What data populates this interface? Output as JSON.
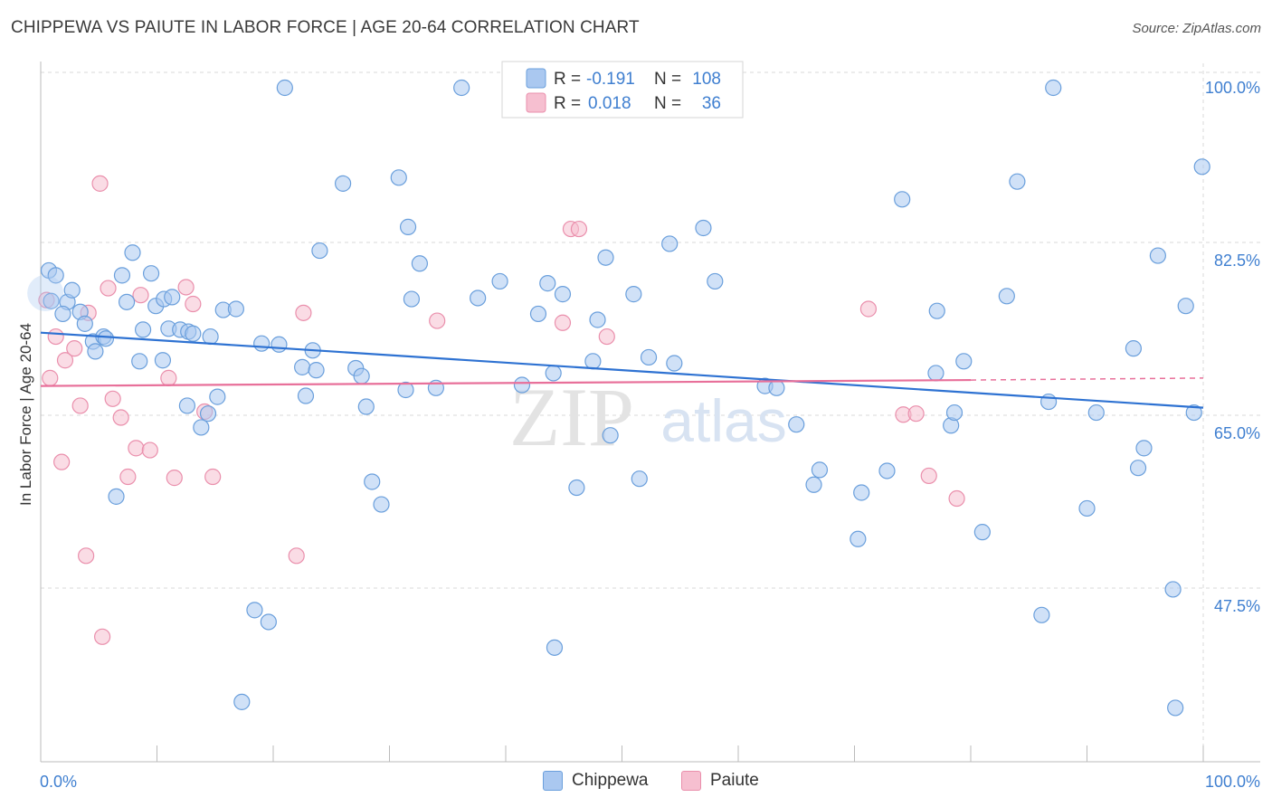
{
  "header": {
    "title": "CHIPPEWA VS PAIUTE IN LABOR FORCE | AGE 20-64 CORRELATION CHART",
    "source": "Source: ZipAtlas.com"
  },
  "watermark": {
    "zip": "ZIP",
    "atlas": "atlas"
  },
  "legend_top": {
    "rows": [
      {
        "r_label": "R =",
        "r_value": "-0.191",
        "n_label": "N =",
        "n_value": "108"
      },
      {
        "r_label": "R =",
        "r_value": "0.018",
        "n_label": "N =",
        "n_value": "36"
      }
    ]
  },
  "legend_bottom": {
    "items": [
      "Chippewa",
      "Paiute"
    ]
  },
  "colors": {
    "chippewa_fill": "#aac8f0",
    "chippewa_stroke": "#6a9fdc",
    "chippewa_line": "#2e72d2",
    "paiute_fill": "#f6bfd0",
    "paiute_stroke": "#ea8fac",
    "paiute_line": "#e8709a",
    "axis_text": "#3f7fd0",
    "grid": "#d9d9d9"
  },
  "chart_data": {
    "type": "scatter",
    "title": "CHIPPEWA VS PAIUTE IN LABOR FORCE | AGE 20-64 CORRELATION CHART",
    "xlabel": "",
    "ylabel": "In Labor Force | Age 20-64",
    "xlim": [
      0,
      100
    ],
    "ylim": [
      31.5,
      102
    ],
    "x_tick_labels": [
      "0.0%",
      "100.0%"
    ],
    "y_ticks": [
      100,
      82.5,
      65,
      47.5
    ],
    "y_tick_labels": [
      "100.0%",
      "82.5%",
      "65.0%",
      "47.5%"
    ],
    "grid": true,
    "legend_placement": "top-center",
    "series": [
      {
        "name": "Chippewa",
        "r": -0.191,
        "n": 108,
        "trend": {
          "x": [
            0,
            100
          ],
          "y": [
            75.2,
            67.6
          ]
        },
        "points": [
          [
            0.7,
            81.5
          ],
          [
            0.9,
            78.4
          ],
          [
            1.3,
            81
          ],
          [
            2.3,
            78.3
          ],
          [
            1.9,
            77.1
          ],
          [
            3.4,
            77.3
          ],
          [
            2.7,
            79.5
          ],
          [
            3.8,
            76.1
          ],
          [
            4.5,
            74.3
          ],
          [
            4.7,
            73.3
          ],
          [
            5.4,
            74.8
          ],
          [
            5.6,
            74.6
          ],
          [
            6.5,
            58.6
          ],
          [
            7.0,
            81
          ],
          [
            7.4,
            78.3
          ],
          [
            7.9,
            83.3
          ],
          [
            8.5,
            72.3
          ],
          [
            8.8,
            75.5
          ],
          [
            9.5,
            81.2
          ],
          [
            9.9,
            77.9
          ],
          [
            10.5,
            72.4
          ],
          [
            10.6,
            78.6
          ],
          [
            11.0,
            75.6
          ],
          [
            11.3,
            78.8
          ],
          [
            12.0,
            75.5
          ],
          [
            12.6,
            67.8
          ],
          [
            12.7,
            75.3
          ],
          [
            13.1,
            75.1
          ],
          [
            13.8,
            65.6
          ],
          [
            14.4,
            67.0
          ],
          [
            14.6,
            74.8
          ],
          [
            15.2,
            68.7
          ],
          [
            15.7,
            77.5
          ],
          [
            16.8,
            77.6
          ],
          [
            17.3,
            37.8
          ],
          [
            18.4,
            47.1
          ],
          [
            19.0,
            74.1
          ],
          [
            19.6,
            45.9
          ],
          [
            20.5,
            74.0
          ],
          [
            21.0,
            100
          ],
          [
            22.5,
            71.7
          ],
          [
            22.8,
            68.8
          ],
          [
            23.4,
            73.4
          ],
          [
            23.7,
            71.4
          ],
          [
            24.0,
            83.5
          ],
          [
            26.0,
            90.3
          ],
          [
            27.1,
            71.6
          ],
          [
            27.6,
            70.8
          ],
          [
            28.0,
            67.7
          ],
          [
            28.5,
            60.1
          ],
          [
            29.3,
            57.8
          ],
          [
            30.8,
            90.9
          ],
          [
            31.4,
            69.4
          ],
          [
            31.6,
            85.9
          ],
          [
            31.9,
            78.6
          ],
          [
            32.6,
            82.2
          ],
          [
            34.0,
            69.6
          ],
          [
            36.2,
            100
          ],
          [
            37.6,
            78.7
          ],
          [
            39.5,
            80.4
          ],
          [
            41.4,
            69.9
          ],
          [
            42.8,
            77.1
          ],
          [
            43.6,
            80.2
          ],
          [
            44.1,
            71.1
          ],
          [
            44.2,
            43.3
          ],
          [
            44.9,
            79.1
          ],
          [
            46.1,
            59.5
          ],
          [
            47.5,
            72.3
          ],
          [
            47.9,
            76.5
          ],
          [
            48.6,
            82.8
          ],
          [
            49.0,
            64.8
          ],
          [
            51.0,
            79.1
          ],
          [
            51.5,
            60.4
          ],
          [
            52.3,
            72.7
          ],
          [
            54.1,
            84.2
          ],
          [
            54.5,
            72.1
          ],
          [
            57.0,
            85.8
          ],
          [
            58.0,
            80.4
          ],
          [
            62.3,
            69.8
          ],
          [
            63.3,
            69.6
          ],
          [
            65.0,
            65.9
          ],
          [
            66.5,
            59.8
          ],
          [
            67.0,
            61.3
          ],
          [
            70.3,
            54.3
          ],
          [
            70.6,
            59.0
          ],
          [
            72.8,
            61.2
          ],
          [
            74.1,
            88.7
          ],
          [
            77.1,
            77.4
          ],
          [
            77.0,
            71.1
          ],
          [
            78.3,
            65.8
          ],
          [
            78.6,
            67.1
          ],
          [
            79.4,
            72.3
          ],
          [
            81.0,
            55.0
          ],
          [
            83.1,
            78.9
          ],
          [
            84.0,
            90.5
          ],
          [
            86.1,
            46.6
          ],
          [
            86.7,
            68.2
          ],
          [
            87.1,
            100
          ],
          [
            90.0,
            57.4
          ],
          [
            90.8,
            67.1
          ],
          [
            94.0,
            73.6
          ],
          [
            94.4,
            61.5
          ],
          [
            94.9,
            63.5
          ],
          [
            96.1,
            83.0
          ],
          [
            97.4,
            49.2
          ],
          [
            97.6,
            37.2
          ],
          [
            98.5,
            77.9
          ],
          [
            99.2,
            67.1
          ],
          [
            99.9,
            92.0
          ]
        ]
      },
      {
        "name": "Paiute",
        "r": 0.018,
        "n": 36,
        "trend": {
          "x": [
            0,
            80
          ],
          "y": [
            69.8,
            70.4
          ]
        },
        "dashed_trend": {
          "x": [
            80,
            100
          ],
          "y": [
            70.4,
            70.6
          ]
        },
        "points": [
          [
            0.5,
            78.5
          ],
          [
            0.8,
            70.6
          ],
          [
            1.3,
            74.8
          ],
          [
            1.8,
            62.1
          ],
          [
            2.1,
            72.4
          ],
          [
            2.9,
            73.6
          ],
          [
            3.4,
            67.8
          ],
          [
            3.9,
            52.6
          ],
          [
            4.1,
            77.2
          ],
          [
            5.1,
            90.3
          ],
          [
            5.3,
            44.4
          ],
          [
            5.8,
            79.7
          ],
          [
            6.2,
            68.5
          ],
          [
            6.9,
            66.6
          ],
          [
            7.5,
            60.6
          ],
          [
            8.2,
            63.5
          ],
          [
            8.6,
            79.0
          ],
          [
            9.4,
            63.3
          ],
          [
            11.0,
            70.6
          ],
          [
            11.5,
            60.5
          ],
          [
            12.5,
            79.8
          ],
          [
            13.1,
            78.1
          ],
          [
            14.1,
            67.2
          ],
          [
            14.8,
            60.6
          ],
          [
            22.0,
            52.6
          ],
          [
            22.6,
            77.2
          ],
          [
            34.1,
            76.4
          ],
          [
            44.9,
            76.2
          ],
          [
            45.6,
            85.7
          ],
          [
            46.3,
            85.7
          ],
          [
            48.7,
            74.8
          ],
          [
            71.2,
            77.6
          ],
          [
            74.2,
            66.9
          ],
          [
            75.3,
            67.0
          ],
          [
            76.4,
            60.7
          ],
          [
            78.8,
            58.4
          ]
        ]
      }
    ]
  }
}
